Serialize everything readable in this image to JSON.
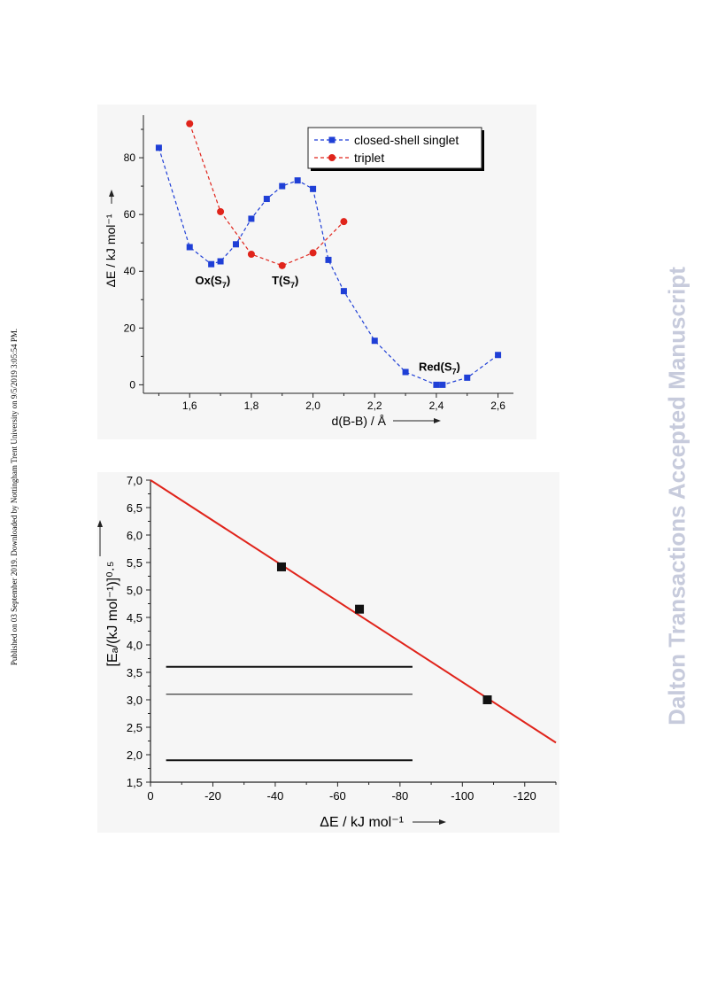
{
  "page": {
    "side_note": "Published on 03 September 2019. Downloaded by Nottingham Trent University on 9/5/2019 3:05:54 PM.",
    "watermark": "Dalton Transactions Accepted Manuscript"
  },
  "chart_data": [
    {
      "type": "line",
      "xlabel": "d(B-B) / Å",
      "ylabel": "ΔE / kJ mol⁻¹",
      "xlim": [
        1.45,
        2.65
      ],
      "ylim": [
        -3,
        95
      ],
      "xticks": [
        1.6,
        1.8,
        2.0,
        2.2,
        2.4,
        2.6
      ],
      "xtick_labels": [
        "1,6",
        "1,8",
        "2,0",
        "2,2",
        "2,4",
        "2,6"
      ],
      "yticks": [
        0,
        20,
        40,
        60,
        80
      ],
      "ytick_labels": [
        "0",
        "20",
        "40",
        "60",
        "80"
      ],
      "legend_position": "top-right",
      "series": [
        {
          "name": "closed-shell singlet",
          "color": "#1f3fd6",
          "marker": "square",
          "line_style": "dashed",
          "x": [
            1.5,
            1.6,
            1.67,
            1.7,
            1.75,
            1.8,
            1.85,
            1.9,
            1.95,
            2.0,
            2.05,
            2.1,
            2.2,
            2.3,
            2.4,
            2.42,
            2.5,
            2.6
          ],
          "y": [
            83.5,
            48.5,
            42.5,
            43.5,
            49.5,
            58.5,
            65.5,
            70,
            72,
            69,
            44,
            33,
            15.5,
            4.5,
            0,
            0,
            2.5,
            10.5
          ]
        },
        {
          "name": "triplet",
          "color": "#e0241b",
          "marker": "circle",
          "line_style": "dashed",
          "x": [
            1.6,
            1.7,
            1.8,
            1.9,
            2.0,
            2.1
          ],
          "y": [
            92,
            61,
            46,
            42,
            46.5,
            57.5
          ]
        }
      ],
      "annotations": [
        {
          "text": "Ox(S",
          "sub": "7",
          "tail": ")",
          "x": 1.675,
          "y": 37
        },
        {
          "text": "T(S",
          "sub": "7",
          "tail": ")",
          "x": 1.91,
          "y": 37
        },
        {
          "text": "Red(S",
          "sub": "7",
          "tail": ")",
          "x": 2.41,
          "y": 6.5
        }
      ]
    },
    {
      "type": "scatter",
      "xlabel": "ΔE / kJ mol⁻¹",
      "ylabel": "[Eₐ/(kJ mol⁻¹)]⁰·⁵",
      "xlim": [
        0,
        -130
      ],
      "ylim": [
        1.5,
        7.0
      ],
      "xticks": [
        0,
        -20,
        -40,
        -60,
        -80,
        -100,
        -120
      ],
      "xtick_labels": [
        "0",
        "-20",
        "-40",
        "-60",
        "-80",
        "-100",
        "-120"
      ],
      "yticks": [
        1.5,
        2.0,
        2.5,
        3.0,
        3.5,
        4.0,
        4.5,
        5.0,
        5.5,
        6.0,
        6.5,
        7.0
      ],
      "ytick_labels": [
        "1,5",
        "2,0",
        "2,5",
        "3,0",
        "3,5",
        "4,0",
        "4,5",
        "5,0",
        "5,5",
        "6,0",
        "6,5",
        "7,0"
      ],
      "points": {
        "marker": "square",
        "color": "#111111",
        "x": [
          -42,
          -67,
          -108
        ],
        "y": [
          5.42,
          4.65,
          3.0
        ]
      },
      "fit_line": {
        "color": "#e0241b",
        "x": [
          0,
          -130
        ],
        "y": [
          7.0,
          2.22
        ]
      },
      "horizontal_lines": [
        {
          "x": [
            -5,
            -84
          ],
          "y": 3.6,
          "weight": "bold"
        },
        {
          "x": [
            -5,
            -84
          ],
          "y": 3.1,
          "weight": "thin"
        },
        {
          "x": [
            -5,
            -84
          ],
          "y": 1.9,
          "weight": "bold"
        }
      ]
    }
  ]
}
